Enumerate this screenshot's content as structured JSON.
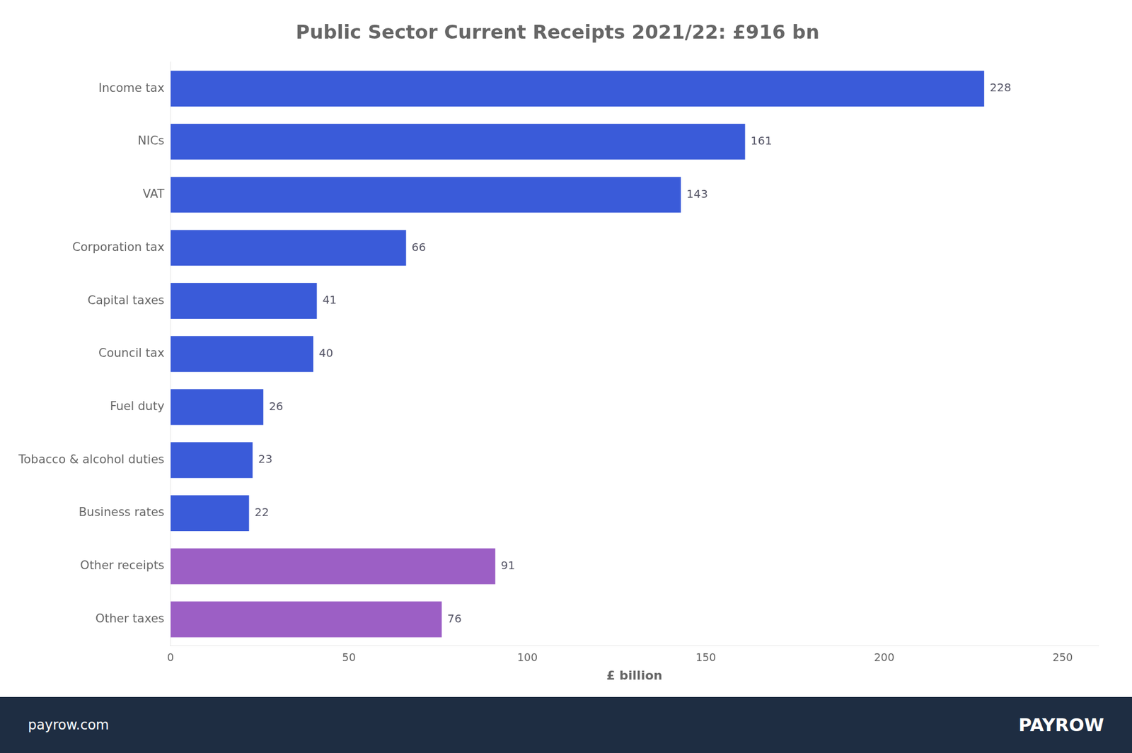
{
  "chart_data": {
    "type": "bar",
    "orientation": "horizontal",
    "title": "Public Sector Current Receipts 2021/22: £916 bn",
    "categories": [
      "Income tax",
      "NICs",
      "VAT",
      "Corporation tax",
      "Capital taxes",
      "Council tax",
      "Fuel duty",
      "Tobacco & alcohol duties",
      "Business rates",
      "Other receipts",
      "Other taxes"
    ],
    "values": [
      228,
      161,
      143,
      66,
      41,
      40,
      26,
      23,
      22,
      91,
      76
    ],
    "colors": [
      "#3a5bd9",
      "#3a5bd9",
      "#3a5bd9",
      "#3a5bd9",
      "#3a5bd9",
      "#3a5bd9",
      "#3a5bd9",
      "#3a5bd9",
      "#3a5bd9",
      "#9c5fc5",
      "#9c5fc5"
    ],
    "xlabel": "£ billion",
    "xlim": [
      0,
      260
    ],
    "xticks": [
      0,
      50,
      100,
      150,
      200,
      250
    ],
    "grid": false,
    "data_labels": true,
    "annotations": [
      "payrow.com",
      "PAYROW"
    ]
  }
}
